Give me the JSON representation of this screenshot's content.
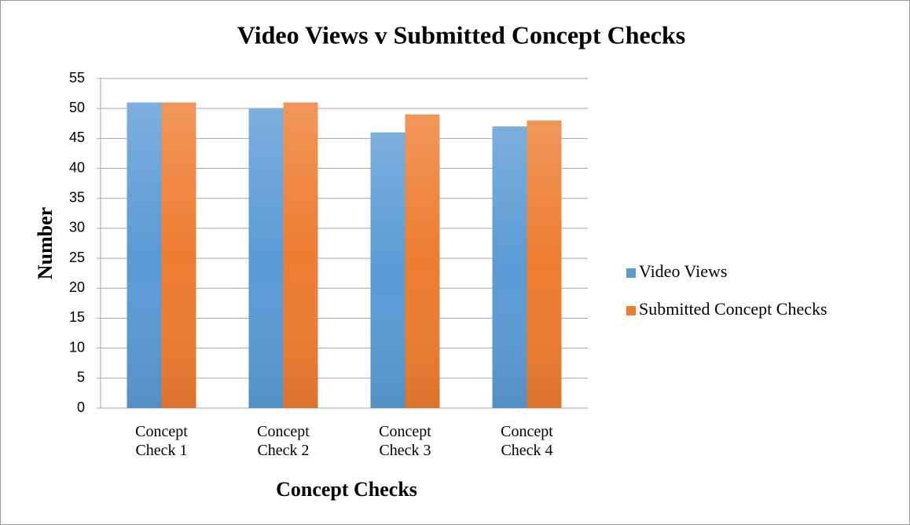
{
  "chart_data": {
    "type": "bar",
    "title": "Video Views v Submitted Concept Checks",
    "x_label": "Concept Checks",
    "y_label": "Number",
    "categories": [
      "Concept Check 1",
      "Concept Check 2",
      "Concept Check 3",
      "Concept Check 4"
    ],
    "series": [
      {
        "name": "Video Views",
        "color": "#5b9bd5",
        "values": [
          51,
          50,
          46,
          47
        ]
      },
      {
        "name": "Submitted Concept Checks",
        "color": "#ed7d31",
        "values": [
          51,
          51,
          49,
          48
        ]
      }
    ],
    "ylim": [
      0,
      55
    ],
    "yticks": [
      0,
      5,
      10,
      15,
      20,
      25,
      30,
      35,
      40,
      45,
      50,
      55
    ],
    "grid": true,
    "legend": "right"
  }
}
